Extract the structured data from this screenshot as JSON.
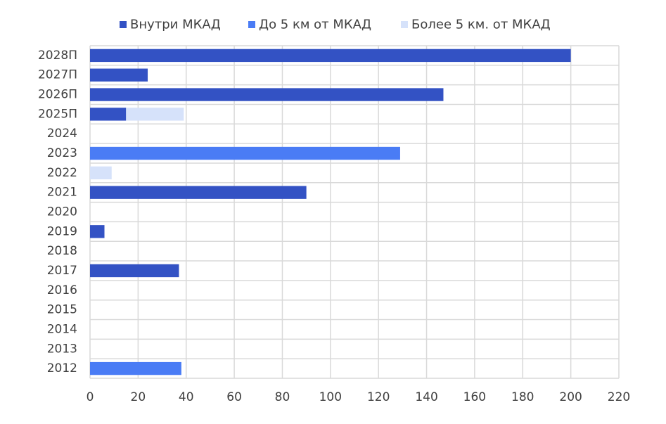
{
  "chart_data": {
    "type": "bar",
    "orientation": "horizontal",
    "stacked": true,
    "categories": [
      "2028П",
      "2027П",
      "2026П",
      "2025П",
      "2024",
      "2023",
      "2022",
      "2021",
      "2020",
      "2019",
      "2018",
      "2017",
      "2016",
      "2015",
      "2014",
      "2013",
      "2012"
    ],
    "series": [
      {
        "name": "Внутри МКАД",
        "color": "#3352c4",
        "values": [
          200,
          24,
          147,
          15,
          0,
          0,
          0,
          90,
          0,
          6,
          0,
          37,
          0,
          0,
          0,
          0,
          0
        ]
      },
      {
        "name": "До 5 км от МКАД",
        "color": "#4a7cf5",
        "values": [
          0,
          0,
          0,
          0,
          0,
          129,
          0,
          0,
          0,
          0,
          0,
          0,
          0,
          0,
          0,
          0,
          38
        ]
      },
      {
        "name": "Более 5 км. от МКАД",
        "color": "#d6e2fa",
        "values": [
          0,
          0,
          0,
          24,
          0,
          0,
          9,
          0,
          0,
          0,
          0,
          0,
          0,
          0,
          0,
          0,
          0
        ]
      }
    ],
    "xlim": [
      0,
      220
    ],
    "xticks": [
      0,
      20,
      40,
      60,
      80,
      100,
      120,
      140,
      160,
      180,
      200,
      220
    ],
    "grid": true,
    "legend_position": "top"
  }
}
